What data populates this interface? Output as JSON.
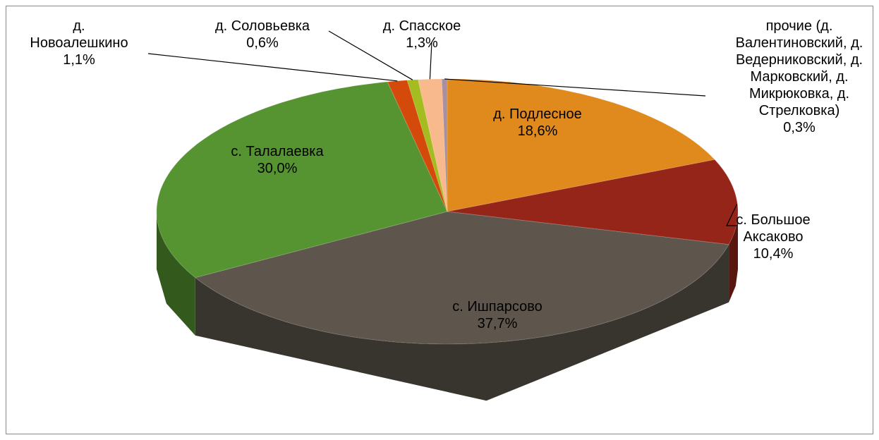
{
  "chart_data": {
    "type": "pie3d",
    "categories": [
      "д. Подлесное",
      "с. Большое Аксаково",
      "с. Ишпарсово",
      "с. Талалаевка",
      "д. Новоалешкино",
      "д. Соловьевка",
      "д. Спасское",
      "прочие (д. Валентиновский, д. Ведерниковский, д. Марковский, д. Микрюковка, д. Стрелковка)"
    ],
    "values": [
      18.6,
      10.4,
      37.7,
      30.0,
      1.1,
      0.6,
      1.3,
      0.3
    ],
    "value_labels": [
      "18,6%",
      "10,4%",
      "37,7%",
      "30,0%",
      "1,1%",
      "0,6%",
      "1,3%",
      "0,3%"
    ],
    "colors": [
      "#e08a1e",
      "#952519",
      "#5e564d",
      "#559431",
      "#d44a0b",
      "#a4bc1f",
      "#f8b98c",
      "#a890a0"
    ]
  }
}
